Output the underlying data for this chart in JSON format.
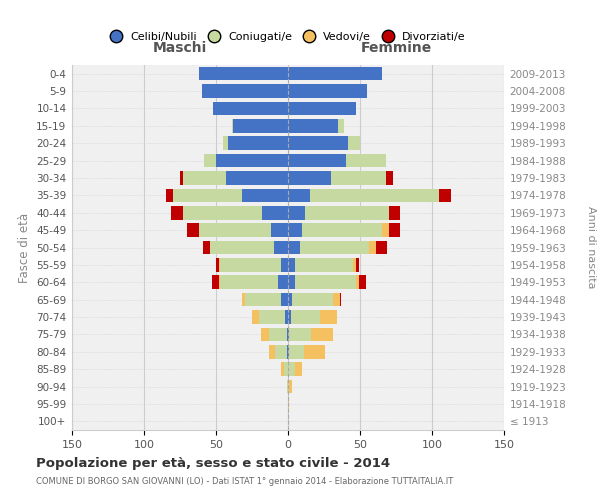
{
  "age_groups": [
    "100+",
    "95-99",
    "90-94",
    "85-89",
    "80-84",
    "75-79",
    "70-74",
    "65-69",
    "60-64",
    "55-59",
    "50-54",
    "45-49",
    "40-44",
    "35-39",
    "30-34",
    "25-29",
    "20-24",
    "15-19",
    "10-14",
    "5-9",
    "0-4"
  ],
  "birth_years": [
    "≤ 1913",
    "1914-1918",
    "1919-1923",
    "1924-1928",
    "1929-1933",
    "1934-1938",
    "1939-1943",
    "1944-1948",
    "1949-1953",
    "1954-1958",
    "1959-1963",
    "1964-1968",
    "1969-1973",
    "1974-1978",
    "1979-1983",
    "1984-1988",
    "1989-1993",
    "1994-1998",
    "1999-2003",
    "2004-2008",
    "2009-2013"
  ],
  "maschi_celibi": [
    0,
    0,
    0,
    0,
    1,
    1,
    2,
    5,
    7,
    5,
    10,
    12,
    18,
    32,
    43,
    50,
    42,
    38,
    52,
    60,
    62
  ],
  "maschi_coniugati": [
    0,
    0,
    1,
    3,
    8,
    12,
    18,
    25,
    40,
    42,
    44,
    50,
    55,
    48,
    30,
    8,
    3,
    1,
    0,
    0,
    0
  ],
  "maschi_vedovi": [
    0,
    0,
    0,
    2,
    4,
    6,
    5,
    2,
    1,
    1,
    0,
    0,
    0,
    0,
    0,
    0,
    0,
    0,
    0,
    0,
    0
  ],
  "maschi_divorziati": [
    0,
    0,
    0,
    0,
    0,
    0,
    0,
    0,
    5,
    2,
    5,
    8,
    8,
    5,
    2,
    0,
    0,
    0,
    0,
    0,
    0
  ],
  "femmine_nubili": [
    0,
    0,
    0,
    0,
    1,
    1,
    2,
    3,
    5,
    5,
    8,
    10,
    12,
    15,
    30,
    40,
    42,
    35,
    47,
    55,
    65
  ],
  "femmine_coniugate": [
    0,
    0,
    1,
    5,
    10,
    15,
    20,
    28,
    42,
    40,
    48,
    55,
    58,
    90,
    38,
    28,
    8,
    4,
    0,
    0,
    0
  ],
  "femmine_vedove": [
    0,
    1,
    2,
    5,
    15,
    15,
    12,
    5,
    2,
    2,
    5,
    5,
    0,
    0,
    0,
    0,
    0,
    0,
    0,
    0,
    0
  ],
  "femmine_divorziate": [
    0,
    0,
    0,
    0,
    0,
    0,
    0,
    1,
    5,
    2,
    8,
    8,
    8,
    8,
    5,
    0,
    0,
    0,
    0,
    0,
    0
  ],
  "color_celibi": "#4472C4",
  "color_coniugati": "#c5d9a0",
  "color_vedovi": "#f5c060",
  "color_divorziati": "#c00000",
  "xlim": 150,
  "title": "Popolazione per età, sesso e stato civile - 2014",
  "subtitle": "COMUNE DI BORGO SAN GIOVANNI (LO) - Dati ISTAT 1° gennaio 2014 - Elaborazione TUTTAITALIA.IT",
  "ylabel_left": "Fasce di età",
  "ylabel_right": "Anni di nascita",
  "label_maschi": "Maschi",
  "label_femmine": "Femmine",
  "legend_labels": [
    "Celibi/Nubili",
    "Coniugati/e",
    "Vedovi/e",
    "Divorziati/e"
  ],
  "bg_color": "#f0f0f0"
}
